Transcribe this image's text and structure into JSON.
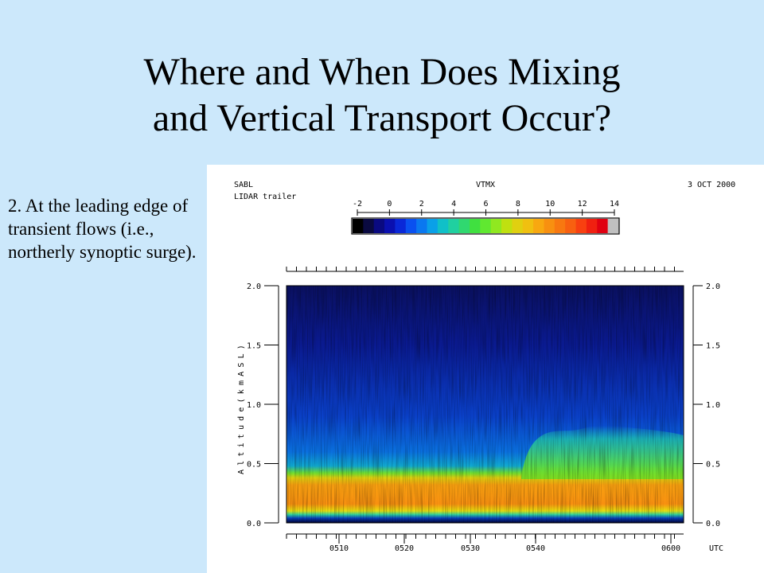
{
  "slide": {
    "title_line1": "Where and When Does Mixing",
    "title_line2": "and Vertical Transport Occur?",
    "bullet": "2. At the leading edge of transient flows (i.e., northerly synoptic surge)."
  },
  "figure": {
    "project": "SABL",
    "instrument": "LIDAR trailer",
    "variable": "VTMX",
    "date": "3 OCT 2000",
    "colorbar_ticks": [
      "-2",
      "0",
      "2",
      "4",
      "6",
      "8",
      "10",
      "12",
      "14"
    ],
    "colorbar_colors": [
      "#000000",
      "#0a0a40",
      "#0a0a80",
      "#0a10b0",
      "#0a28d8",
      "#0a50f0",
      "#0a78f0",
      "#0aa0e8",
      "#10c0c8",
      "#20d0a0",
      "#30d870",
      "#40e040",
      "#60e830",
      "#90e820",
      "#c0e010",
      "#e0d010",
      "#f0c010",
      "#f8a810",
      "#f89010",
      "#f87810",
      "#f86010",
      "#f84010",
      "#f02010",
      "#e00010",
      "#c0c0c0"
    ],
    "y_ticks": [
      "0.0",
      "0.5",
      "1.0",
      "1.5",
      "2.0"
    ],
    "y_label_glyphs": [
      "A",
      "l",
      "t",
      "i",
      "t",
      "u",
      "d",
      "e",
      "(",
      "k",
      "m",
      "A",
      "S",
      "L",
      ")"
    ],
    "x_ticks": [
      "0510",
      "0520",
      "0530",
      "0540",
      "0600"
    ],
    "x_unit": "UTC"
  },
  "colors": {
    "background": "#cce8fb",
    "panel": "#ffffff"
  }
}
